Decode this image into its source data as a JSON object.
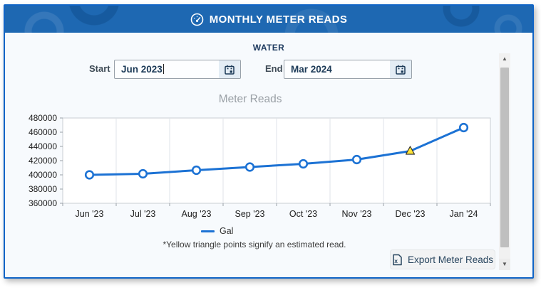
{
  "header": {
    "title": "MONTHLY METER READS"
  },
  "section": {
    "utility": "WATER"
  },
  "controls": {
    "start_label": "Start",
    "start_value": "Jun 2023",
    "end_label": "End",
    "end_value": "Mar 2024"
  },
  "chart_data": {
    "type": "line",
    "title": "Meter Reads",
    "categories": [
      "Jun '23",
      "Jul '23",
      "Aug '23",
      "Sep '23",
      "Oct '23",
      "Nov '23",
      "Dec '23",
      "Jan '24"
    ],
    "series": [
      {
        "name": "Gal",
        "values": [
          400000,
          401500,
          406500,
          411000,
          415500,
          421500,
          433500,
          466500
        ]
      }
    ],
    "estimated": [
      false,
      false,
      false,
      false,
      false,
      false,
      true,
      false
    ],
    "ylim": [
      360000,
      480000
    ],
    "ytick_step": 20000,
    "xlabel": "",
    "ylabel": "",
    "grid": "vertical",
    "legend_position": "bottom",
    "line_color": "#1c72d4",
    "marker": "circle-open",
    "estimated_marker": "yellow-triangle",
    "estimated_marker_color": "#ffe438"
  },
  "notes": {
    "footnote": "*Yellow triangle points signify an estimated read."
  },
  "toolbar": {
    "export_label": "Export Meter Reads"
  },
  "scrollbar": {
    "up_glyph": "▲",
    "down_glyph": "▼"
  },
  "colors": {
    "header_bg": "#1e68b2",
    "frame_border": "#1064c6",
    "accent_line": "#1c72d4",
    "navy_text": "#1c3a57",
    "title_gray": "#9aa0a6"
  }
}
